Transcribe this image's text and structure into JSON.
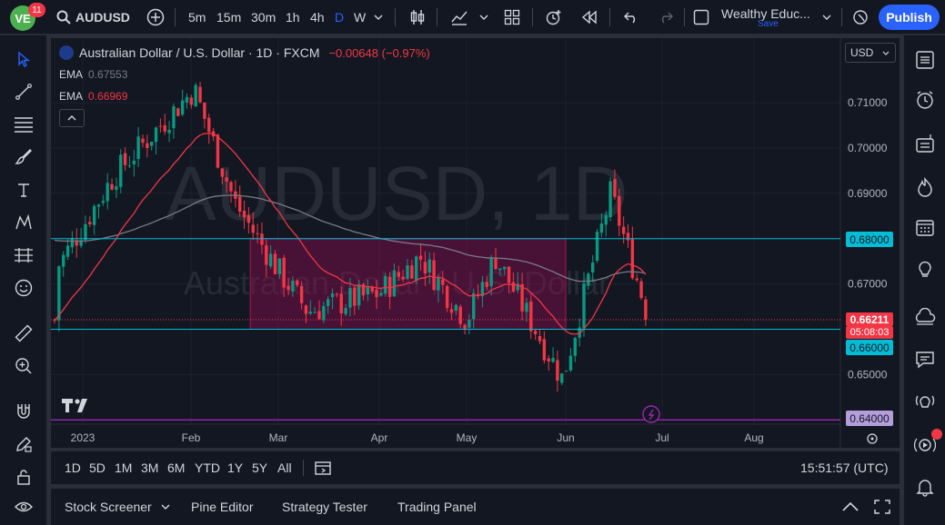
{
  "topbar": {
    "notification_count": "11",
    "symbol": "AUDUSD",
    "intervals": [
      "5m",
      "15m",
      "30m",
      "1h",
      "4h",
      "D",
      "W"
    ],
    "active_interval": "D",
    "layout_name": "Wealthy Educ...",
    "layout_status": "Save",
    "publish_label": "Publish"
  },
  "legend": {
    "title": "Australian Dollar / U.S. Dollar · 1D · FXCM",
    "change": "−0.00648 (−0.97%)",
    "ema1_label": "EMA",
    "ema1_value": "0.67553",
    "ema2_label": "EMA",
    "ema2_value": "0.66969"
  },
  "watermark": {
    "main": "AUDUSD, 1D",
    "sub": "Australian Dollar / U.S. Dollar"
  },
  "currency_select": "USD",
  "price_axis": {
    "ticks": [
      "0.71000",
      "0.70000",
      "0.69000",
      "0.67000",
      "0.65000"
    ],
    "labels": {
      "level_high": "0.68000",
      "current_price": "0.66211",
      "countdown": "05:08:03",
      "level_low": "0.66000",
      "level_bottom": "0.64000"
    }
  },
  "time_axis": [
    "2023",
    "Feb",
    "Mar",
    "Apr",
    "May",
    "Jun",
    "Jul",
    "Aug"
  ],
  "timeframes": [
    "1D",
    "5D",
    "1M",
    "3M",
    "6M",
    "YTD",
    "1Y",
    "5Y",
    "All"
  ],
  "clock": "15:51:57 (UTC)",
  "bottom_panels": [
    "Stock Screener",
    "Pine Editor",
    "Strategy Tester",
    "Trading Panel"
  ],
  "colors": {
    "up": "#089981",
    "down": "#f23645",
    "background": "#131722",
    "level_line": "#00bcd4",
    "bottom_line": "#9c27b0",
    "ema_fast": "#f23645",
    "ema_slow": "#787b86",
    "zone_fill": "#880e4f",
    "accent": "#2962ff"
  },
  "chart_data": {
    "type": "candlestick",
    "series": [
      {
        "name": "EMA",
        "role": "slow"
      },
      {
        "name": "EMA",
        "role": "fast"
      }
    ],
    "ylim": [
      0.64,
      0.715
    ],
    "horizontal_levels": [
      0.68,
      0.66,
      0.64
    ],
    "zone": {
      "from": "Feb 20",
      "to": "Jun 1",
      "low": 0.66,
      "high": 0.68
    },
    "last_close": 0.66211,
    "approx_path": {
      "dates": [
        "Jan 2",
        "Jan 15",
        "Feb 2",
        "Feb 15",
        "Mar 1",
        "Mar 10",
        "Apr 1",
        "Apr 15",
        "May 1",
        "May 10",
        "May 31",
        "Jun 15",
        "Jun 27"
      ],
      "closes": [
        0.673,
        0.694,
        0.713,
        0.688,
        0.673,
        0.664,
        0.668,
        0.676,
        0.662,
        0.676,
        0.649,
        0.69,
        0.662
      ]
    }
  }
}
